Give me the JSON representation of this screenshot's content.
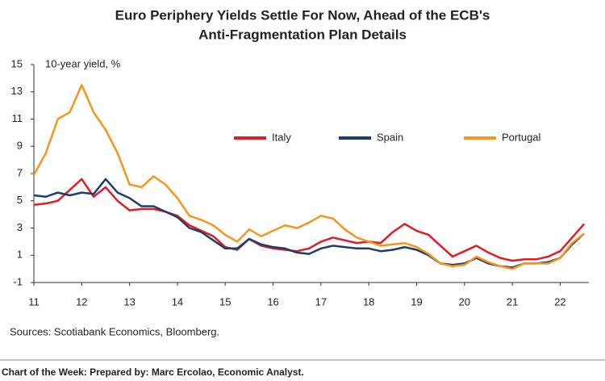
{
  "chart_data": {
    "type": "line",
    "title": [
      "Euro Periphery Yields Settle For Now, Ahead of the ECB's",
      "Anti-Fragmentation Plan Details"
    ],
    "y_label": "10-year yield, %",
    "source": "Sources: Scotiabank Economics, Bloomberg.",
    "footer": "Chart of the Week:  Prepared by: Marc Ercolao, Economic Analyst.",
    "x": [
      11,
      11.25,
      11.5,
      11.75,
      12,
      12.25,
      12.5,
      12.75,
      13,
      13.25,
      13.5,
      13.75,
      14,
      14.25,
      14.5,
      14.75,
      15,
      15.25,
      15.5,
      15.75,
      16,
      16.25,
      16.5,
      16.75,
      17,
      17.25,
      17.5,
      17.75,
      18,
      18.25,
      18.5,
      18.75,
      19,
      19.25,
      19.5,
      19.75,
      20,
      20.25,
      20.5,
      20.75,
      21,
      21.25,
      21.5,
      21.75,
      22,
      22.25,
      22.5
    ],
    "series": [
      {
        "name": "Italy",
        "color": "#e31b23",
        "values": [
          4.7,
          4.8,
          5.0,
          5.8,
          6.6,
          5.3,
          6.0,
          5.0,
          4.3,
          4.4,
          4.4,
          4.2,
          3.9,
          3.2,
          2.8,
          2.4,
          1.6,
          1.4,
          2.2,
          1.7,
          1.5,
          1.4,
          1.3,
          1.5,
          2.0,
          2.3,
          2.1,
          1.9,
          2.0,
          1.9,
          2.7,
          3.3,
          2.8,
          2.5,
          1.7,
          0.9,
          1.3,
          1.7,
          1.2,
          0.8,
          0.6,
          0.7,
          0.7,
          0.9,
          1.3,
          2.3,
          3.3
        ]
      },
      {
        "name": "Spain",
        "color": "#1f3d6b",
        "values": [
          5.4,
          5.3,
          5.6,
          5.4,
          5.6,
          5.5,
          6.6,
          5.6,
          5.2,
          4.6,
          4.6,
          4.2,
          3.8,
          3.0,
          2.7,
          2.1,
          1.5,
          1.5,
          2.2,
          1.8,
          1.6,
          1.5,
          1.2,
          1.1,
          1.5,
          1.7,
          1.6,
          1.5,
          1.5,
          1.3,
          1.4,
          1.6,
          1.4,
          1.0,
          0.4,
          0.3,
          0.4,
          0.8,
          0.4,
          0.2,
          0.1,
          0.4,
          0.4,
          0.5,
          0.8,
          1.8,
          2.6
        ]
      },
      {
        "name": "Portugal",
        "color": "#f7941d",
        "values": [
          6.9,
          8.5,
          11.0,
          11.5,
          13.5,
          11.5,
          10.2,
          8.5,
          6.2,
          6.0,
          6.8,
          6.2,
          5.2,
          3.9,
          3.6,
          3.2,
          2.5,
          2.0,
          2.9,
          2.4,
          2.8,
          3.2,
          3.0,
          3.4,
          3.9,
          3.7,
          2.9,
          2.3,
          2.0,
          1.7,
          1.8,
          1.9,
          1.6,
          1.1,
          0.4,
          0.2,
          0.3,
          0.9,
          0.5,
          0.2,
          0.0,
          0.4,
          0.4,
          0.4,
          0.8,
          1.9,
          2.6
        ]
      }
    ],
    "xlim": [
      11,
      22.6
    ],
    "xticks": [
      11,
      12,
      13,
      14,
      15,
      16,
      17,
      18,
      19,
      20,
      21,
      22
    ],
    "ylim": [
      -1,
      15
    ],
    "yticks": [
      -1,
      1,
      3,
      5,
      7,
      9,
      11,
      13,
      15
    ]
  }
}
